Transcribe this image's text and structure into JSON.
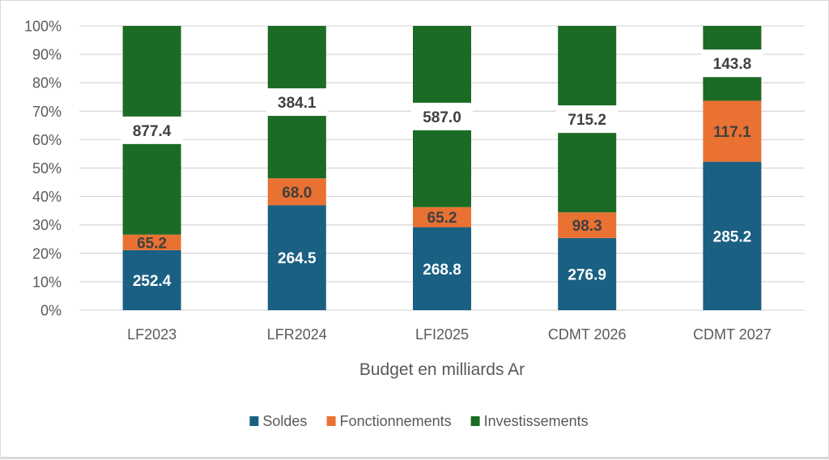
{
  "chart_data": {
    "type": "bar",
    "stacked": "percent",
    "title": "",
    "xlabel": "Budget en milliards Ar",
    "ylabel": "",
    "ylim": [
      0,
      100
    ],
    "yticks": [
      "0%",
      "10%",
      "20%",
      "30%",
      "40%",
      "50%",
      "60%",
      "70%",
      "80%",
      "90%",
      "100%"
    ],
    "grid": true,
    "legend_position": "bottom",
    "categories": [
      "LF2023",
      "LFR2024",
      "LFI2025",
      "CDMT 2026",
      "CDMT 2027"
    ],
    "series": [
      {
        "name": "Soldes",
        "color": "#1a6083",
        "label_color": "#ffffff",
        "values": [
          252.4,
          264.5,
          268.8,
          276.9,
          285.2
        ]
      },
      {
        "name": "Fonctionnements",
        "color": "#e97132",
        "label_color": "#404040",
        "values": [
          65.2,
          68.0,
          65.2,
          98.3,
          117.1
        ]
      },
      {
        "name": "Investissements",
        "color": "#1b6b25",
        "label_color": "#404040",
        "values": [
          877.4,
          384.1,
          587.0,
          715.2,
          143.8
        ]
      }
    ]
  }
}
